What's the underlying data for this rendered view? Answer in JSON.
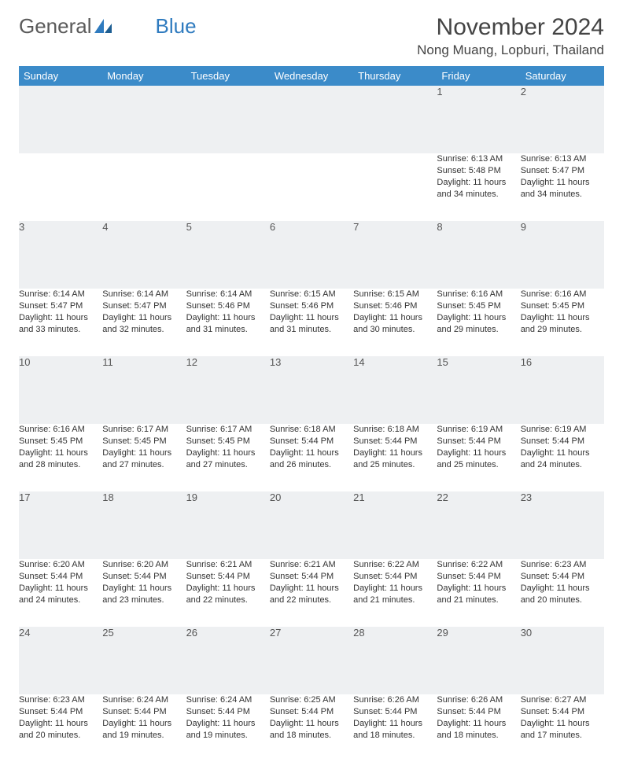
{
  "brand": {
    "part1": "General",
    "part2": "Blue"
  },
  "title": "November 2024",
  "location": "Nong Muang, Lopburi, Thailand",
  "colors": {
    "header_bg": "#3b8bc9",
    "daynum_bg": "#eef0f2",
    "row_border": "#7a98b0",
    "text": "#333333",
    "brand_gray": "#5a5a5a",
    "brand_blue": "#2f7bbf"
  },
  "weekdays": [
    "Sunday",
    "Monday",
    "Tuesday",
    "Wednesday",
    "Thursday",
    "Friday",
    "Saturday"
  ],
  "weeks": [
    [
      null,
      null,
      null,
      null,
      null,
      {
        "n": "1",
        "sr": "6:13 AM",
        "ss": "5:48 PM",
        "dl": "11 hours and 34 minutes."
      },
      {
        "n": "2",
        "sr": "6:13 AM",
        "ss": "5:47 PM",
        "dl": "11 hours and 34 minutes."
      }
    ],
    [
      {
        "n": "3",
        "sr": "6:14 AM",
        "ss": "5:47 PM",
        "dl": "11 hours and 33 minutes."
      },
      {
        "n": "4",
        "sr": "6:14 AM",
        "ss": "5:47 PM",
        "dl": "11 hours and 32 minutes."
      },
      {
        "n": "5",
        "sr": "6:14 AM",
        "ss": "5:46 PM",
        "dl": "11 hours and 31 minutes."
      },
      {
        "n": "6",
        "sr": "6:15 AM",
        "ss": "5:46 PM",
        "dl": "11 hours and 31 minutes."
      },
      {
        "n": "7",
        "sr": "6:15 AM",
        "ss": "5:46 PM",
        "dl": "11 hours and 30 minutes."
      },
      {
        "n": "8",
        "sr": "6:16 AM",
        "ss": "5:45 PM",
        "dl": "11 hours and 29 minutes."
      },
      {
        "n": "9",
        "sr": "6:16 AM",
        "ss": "5:45 PM",
        "dl": "11 hours and 29 minutes."
      }
    ],
    [
      {
        "n": "10",
        "sr": "6:16 AM",
        "ss": "5:45 PM",
        "dl": "11 hours and 28 minutes."
      },
      {
        "n": "11",
        "sr": "6:17 AM",
        "ss": "5:45 PM",
        "dl": "11 hours and 27 minutes."
      },
      {
        "n": "12",
        "sr": "6:17 AM",
        "ss": "5:45 PM",
        "dl": "11 hours and 27 minutes."
      },
      {
        "n": "13",
        "sr": "6:18 AM",
        "ss": "5:44 PM",
        "dl": "11 hours and 26 minutes."
      },
      {
        "n": "14",
        "sr": "6:18 AM",
        "ss": "5:44 PM",
        "dl": "11 hours and 25 minutes."
      },
      {
        "n": "15",
        "sr": "6:19 AM",
        "ss": "5:44 PM",
        "dl": "11 hours and 25 minutes."
      },
      {
        "n": "16",
        "sr": "6:19 AM",
        "ss": "5:44 PM",
        "dl": "11 hours and 24 minutes."
      }
    ],
    [
      {
        "n": "17",
        "sr": "6:20 AM",
        "ss": "5:44 PM",
        "dl": "11 hours and 24 minutes."
      },
      {
        "n": "18",
        "sr": "6:20 AM",
        "ss": "5:44 PM",
        "dl": "11 hours and 23 minutes."
      },
      {
        "n": "19",
        "sr": "6:21 AM",
        "ss": "5:44 PM",
        "dl": "11 hours and 22 minutes."
      },
      {
        "n": "20",
        "sr": "6:21 AM",
        "ss": "5:44 PM",
        "dl": "11 hours and 22 minutes."
      },
      {
        "n": "21",
        "sr": "6:22 AM",
        "ss": "5:44 PM",
        "dl": "11 hours and 21 minutes."
      },
      {
        "n": "22",
        "sr": "6:22 AM",
        "ss": "5:44 PM",
        "dl": "11 hours and 21 minutes."
      },
      {
        "n": "23",
        "sr": "6:23 AM",
        "ss": "5:44 PM",
        "dl": "11 hours and 20 minutes."
      }
    ],
    [
      {
        "n": "24",
        "sr": "6:23 AM",
        "ss": "5:44 PM",
        "dl": "11 hours and 20 minutes."
      },
      {
        "n": "25",
        "sr": "6:24 AM",
        "ss": "5:44 PM",
        "dl": "11 hours and 19 minutes."
      },
      {
        "n": "26",
        "sr": "6:24 AM",
        "ss": "5:44 PM",
        "dl": "11 hours and 19 minutes."
      },
      {
        "n": "27",
        "sr": "6:25 AM",
        "ss": "5:44 PM",
        "dl": "11 hours and 18 minutes."
      },
      {
        "n": "28",
        "sr": "6:26 AM",
        "ss": "5:44 PM",
        "dl": "11 hours and 18 minutes."
      },
      {
        "n": "29",
        "sr": "6:26 AM",
        "ss": "5:44 PM",
        "dl": "11 hours and 18 minutes."
      },
      {
        "n": "30",
        "sr": "6:27 AM",
        "ss": "5:44 PM",
        "dl": "11 hours and 17 minutes."
      }
    ]
  ],
  "labels": {
    "sunrise": "Sunrise:",
    "sunset": "Sunset:",
    "daylight": "Daylight:"
  }
}
